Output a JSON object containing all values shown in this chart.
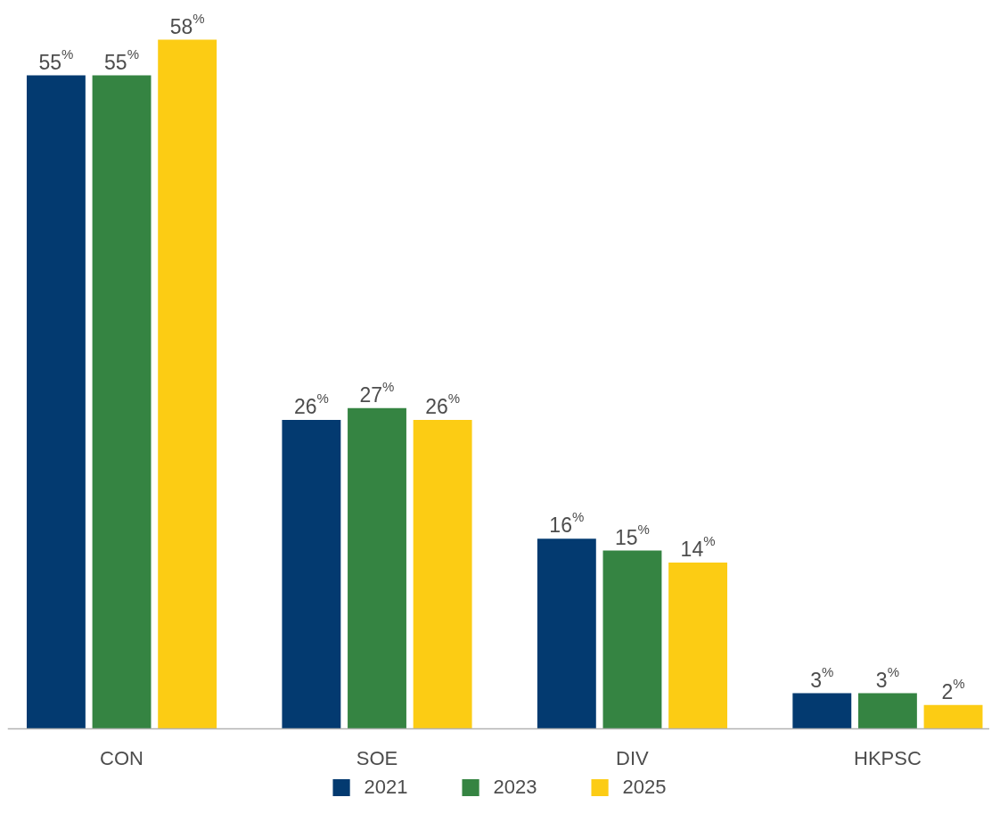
{
  "chart_data": {
    "type": "bar",
    "categories": [
      "CON",
      "SOE",
      "DIV",
      "HKPSC"
    ],
    "series": [
      {
        "name": "2021",
        "color": "#033a70",
        "values": [
          55,
          26,
          16,
          3
        ],
        "value_labels": [
          "55$^{%}$",
          "26$^{%}$",
          "16$^{%}$",
          "3$^{%}$"
        ]
      },
      {
        "name": "2023",
        "color": "#358442",
        "values": [
          55,
          27,
          15,
          3
        ],
        "value_labels": [
          "55$^{%}$",
          "27$^{%}$",
          "15$^{%}$",
          "3$^{%}$"
        ]
      },
      {
        "name": "2025",
        "color": "#fccc14",
        "values": [
          58,
          26,
          14,
          2
        ],
        "value_labels": [
          "58$^{%}$",
          "26$^{%}$",
          "14$^{%}$",
          "2$^{%}$"
        ]
      }
    ],
    "legend": "bottom"
  }
}
